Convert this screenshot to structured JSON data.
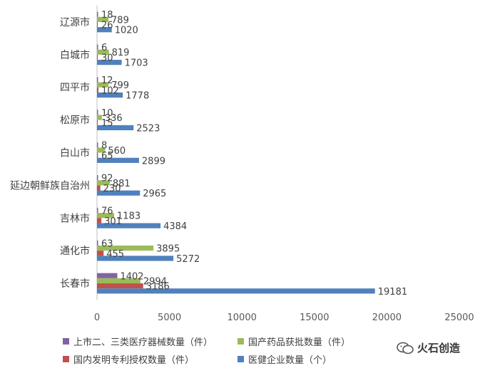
{
  "chart_data": {
    "type": "bar",
    "orientation": "horizontal",
    "categories": [
      "长春市",
      "通化市",
      "吉林市",
      "延边朝鲜族自治州",
      "白山市",
      "松原市",
      "四平市",
      "白城市",
      "辽源市"
    ],
    "series": [
      {
        "name": "上市二、三类医疗器械数量（件）",
        "color": "#8064A2",
        "values": [
          1402,
          0,
          0,
          0,
          0,
          0,
          0,
          0,
          0
        ],
        "labels": [
          "1402",
          "",
          "",
          "",
          "",
          "",
          "",
          "",
          ""
        ]
      },
      {
        "name": "国产药品获批数量（件）",
        "color": "#9BBB59",
        "values": [
          2994,
          3895,
          1183,
          881,
          560,
          336,
          799,
          819,
          789
        ],
        "labels": [
          "2994",
          "3895",
          "1183",
          "881",
          "560",
          "336",
          "799",
          "819",
          "789"
        ]
      },
      {
        "name": "国内发明专利授权数量（件）",
        "color": "#C0504D",
        "values": [
          3186,
          455,
          301,
          230,
          65,
          15,
          102,
          30,
          26
        ],
        "labels": [
          "3186",
          "455",
          "301",
          "230",
          "65",
          "15",
          "102",
          "30",
          "26"
        ]
      },
      {
        "name": "医健企业数量（个）",
        "color": "#4F81BD",
        "values": [
          19181,
          5272,
          4384,
          2965,
          2899,
          2523,
          1778,
          1703,
          1020
        ],
        "labels": [
          "19181",
          "5272",
          "4384",
          "2965",
          "2899",
          "2523",
          "1778",
          "1703",
          "1020"
        ]
      }
    ],
    "extra_labels": [
      "",
      "63",
      "76",
      "92",
      "8",
      "10",
      "12",
      "6",
      "18"
    ],
    "xlim": [
      0,
      25000
    ],
    "xticks": [
      "0",
      "5000",
      "10000",
      "15000",
      "20000",
      "25000"
    ],
    "legend_position": "bottom",
    "grid": false
  },
  "legend": {
    "items": [
      {
        "label": "上市二、三类医疗器械数量（件）",
        "color": "#8064A2"
      },
      {
        "label": "国产药品获批数量（件）",
        "color": "#9BBB59"
      },
      {
        "label": "国内发明专利授权数量（件）",
        "color": "#C0504D"
      },
      {
        "label": "医健企业数量（个）",
        "color": "#4F81BD"
      }
    ]
  },
  "watermark": {
    "text": "火石创造"
  }
}
